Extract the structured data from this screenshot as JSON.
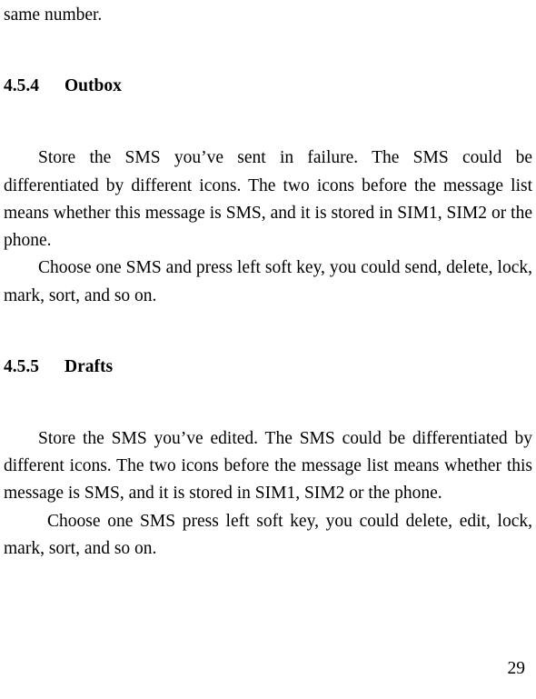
{
  "fragment_top": "same number.",
  "section_454": {
    "number": "4.5.4",
    "title": "Outbox",
    "p1": "Store the SMS you’ve sent in failure. The SMS could be differentiated by different icons. The two icons before the message list means whether this message is SMS, and it is stored in SIM1, SIM2 or the phone.",
    "p2": "Choose one SMS and press left soft key, you could send, delete, lock, mark, sort, and so on."
  },
  "section_455": {
    "number": "4.5.5",
    "title": "Drafts",
    "p1": "Store the SMS you’ve edited. The SMS could be differentiated by different icons. The two icons before the message list means whether this message is SMS, and it is stored in SIM1, SIM2 or the phone.",
    "p2": "Choose one SMS press left soft key, you could delete, edit, lock, mark, sort, and so on."
  },
  "page_number": "29"
}
